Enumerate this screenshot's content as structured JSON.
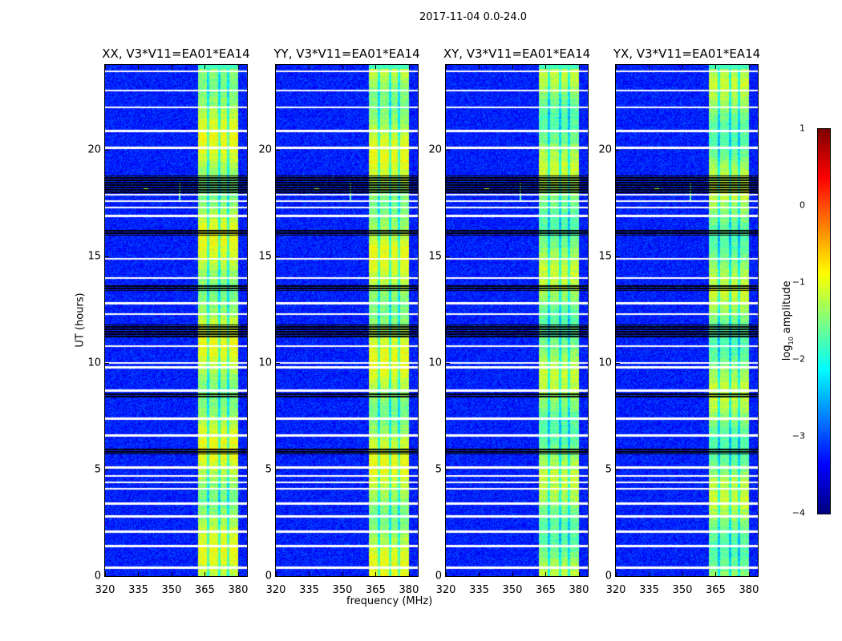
{
  "chart_data": {
    "type": "heatmap",
    "title": "2017-11-04 0.0-24.0",
    "xlabel": "frequency (MHz)",
    "ylabel": "UT (hours)",
    "xlim": [
      320,
      384
    ],
    "ylim": [
      0,
      24
    ],
    "xticks": [
      "320",
      "335",
      "350",
      "365",
      "380"
    ],
    "xtick_values": [
      320,
      335,
      350,
      365,
      380
    ],
    "yticks": [
      "0",
      "5",
      "10",
      "15",
      "20"
    ],
    "ytick_values": [
      0,
      5,
      10,
      15,
      20
    ],
    "panels": [
      {
        "title": "XX, V3*V11=EA01*EA14"
      },
      {
        "title": "YY, V3*V11=EA01*EA14"
      },
      {
        "title": "XY, V3*V11=EA01*EA14"
      },
      {
        "title": "YX, V3*V11=EA01*EA14"
      }
    ],
    "colorbar": {
      "label_prefix": "log",
      "label_sub": "10",
      "label_suffix": " amplitude",
      "colormap": "jet",
      "range": [
        -4,
        1
      ],
      "ticks": [
        "1",
        "0",
        "−1",
        "−2",
        "−3",
        "−4"
      ],
      "tick_values": [
        1,
        0,
        -1,
        -2,
        -3,
        -4
      ]
    },
    "background_level": -3.3,
    "rfi_band_mhz": [
      362,
      380
    ],
    "rfi_band_level": -1.2,
    "flagged_white_hours": [
      23.7,
      22.8,
      22.0,
      20.9,
      20.1,
      17.9,
      17.6,
      17.3,
      16.9,
      14.9,
      14.0,
      12.8,
      12.3,
      10.8,
      10.0,
      9.8,
      8.7,
      7.4,
      6.6,
      5.1,
      4.7,
      4.4,
      4.1,
      3.4,
      2.8,
      2.1,
      1.4,
      0.4
    ],
    "flagged_black_hours": [
      [
        18.0,
        18.8
      ],
      [
        16.0,
        16.3
      ],
      [
        13.4,
        13.7
      ],
      [
        11.2,
        11.8
      ],
      [
        5.7,
        6.0
      ],
      [
        8.4,
        8.6
      ]
    ]
  }
}
